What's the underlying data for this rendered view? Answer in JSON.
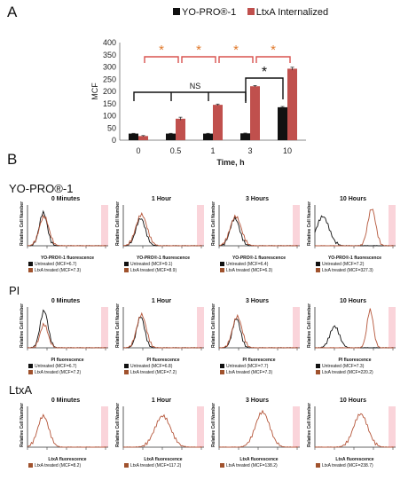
{
  "panels": {
    "a_label": "A",
    "b_label": "B"
  },
  "colors": {
    "yo": "#111111",
    "ltxa": "#c0504d",
    "star": "#e07a2d",
    "bracket": "#d9534f",
    "pink": "#f7b7c1"
  },
  "legend": {
    "yo": "YO-PRO®-1",
    "ltxa": "LtxA Internalized"
  },
  "chart_data": {
    "type": "bar",
    "xlabel": "Time, h",
    "ylabel": "MCF",
    "ylim": [
      0,
      400
    ],
    "yticks": [
      "0",
      "50",
      "100",
      "150",
      "200",
      "250",
      "300",
      "350",
      "400"
    ],
    "categories": [
      "0",
      "0.5",
      "1",
      "3",
      "10"
    ],
    "series": [
      {
        "name": "YO-PRO®-1",
        "values": [
          27,
          27,
          27,
          28,
          135
        ],
        "errors": [
          1,
          1,
          1,
          1,
          3
        ]
      },
      {
        "name": "LtxA Internalized",
        "values": [
          17,
          88,
          145,
          221,
          293
        ],
        "errors": [
          2,
          6,
          3,
          3,
          6
        ]
      }
    ],
    "annotations": {
      "ns": "NS",
      "star": "*"
    }
  },
  "rows": [
    {
      "title": "YO-PRO®-1",
      "xlabel": "YO-PRO®-1 fluorescence",
      "ylabel": "Relative Cell Number",
      "cells": [
        {
          "title": "0 Minutes",
          "leg1": "Untreated (MCF=6.7)",
          "leg2": "LtxA treated (MCF=7.3)"
        },
        {
          "title": "1 Hour",
          "leg1": "Untreated (MCF=9.1)",
          "leg2": "LtxA treated (MCF=8.9)"
        },
        {
          "title": "3 Hours",
          "leg1": "Untreated (MCF=6.4)",
          "leg2": "LtxA treated (MCF=6.3)"
        },
        {
          "title": "10 Hours",
          "leg1": "Untreated (MCF=7.2)",
          "leg2": "LtxA treated (MCF=327.3)"
        }
      ]
    },
    {
      "title": "PI",
      "xlabel": "PI fluorescence",
      "ylabel": "Relative Cell Number",
      "cells": [
        {
          "title": "0 Minutes",
          "leg1": "Untreated (MCF=6.7)",
          "leg2": "LtxA treated (MCF=7.2)"
        },
        {
          "title": "1 Hour",
          "leg1": "Untreated (MCF=6.8)",
          "leg2": "LtxA treated (MCF=7.2)"
        },
        {
          "title": "3 Hours",
          "leg1": "Untreated (MCF=7.7)",
          "leg2": "LtxA treated (MCF=7.3)"
        },
        {
          "title": "10 Hours",
          "leg1": "Untreated (MCF=7.3)",
          "leg2": "LtxA treated (MCF=220.2)"
        }
      ]
    },
    {
      "title": "LtxA",
      "xlabel": "LtxA fluorescence",
      "ylabel": "Relative Cell Number",
      "cells": [
        {
          "title": "0 Minutes",
          "leg1": "LtxA treated (MCF=8.2)"
        },
        {
          "title": "1 Hour",
          "leg1": "LtxA treated (MCF=117.2)"
        },
        {
          "title": "3 Hours",
          "leg1": "LtxA treated (MCF=138.2)"
        },
        {
          "title": "10 Hours",
          "leg1": "LtxA treated (MCF=238.7)"
        }
      ]
    }
  ]
}
